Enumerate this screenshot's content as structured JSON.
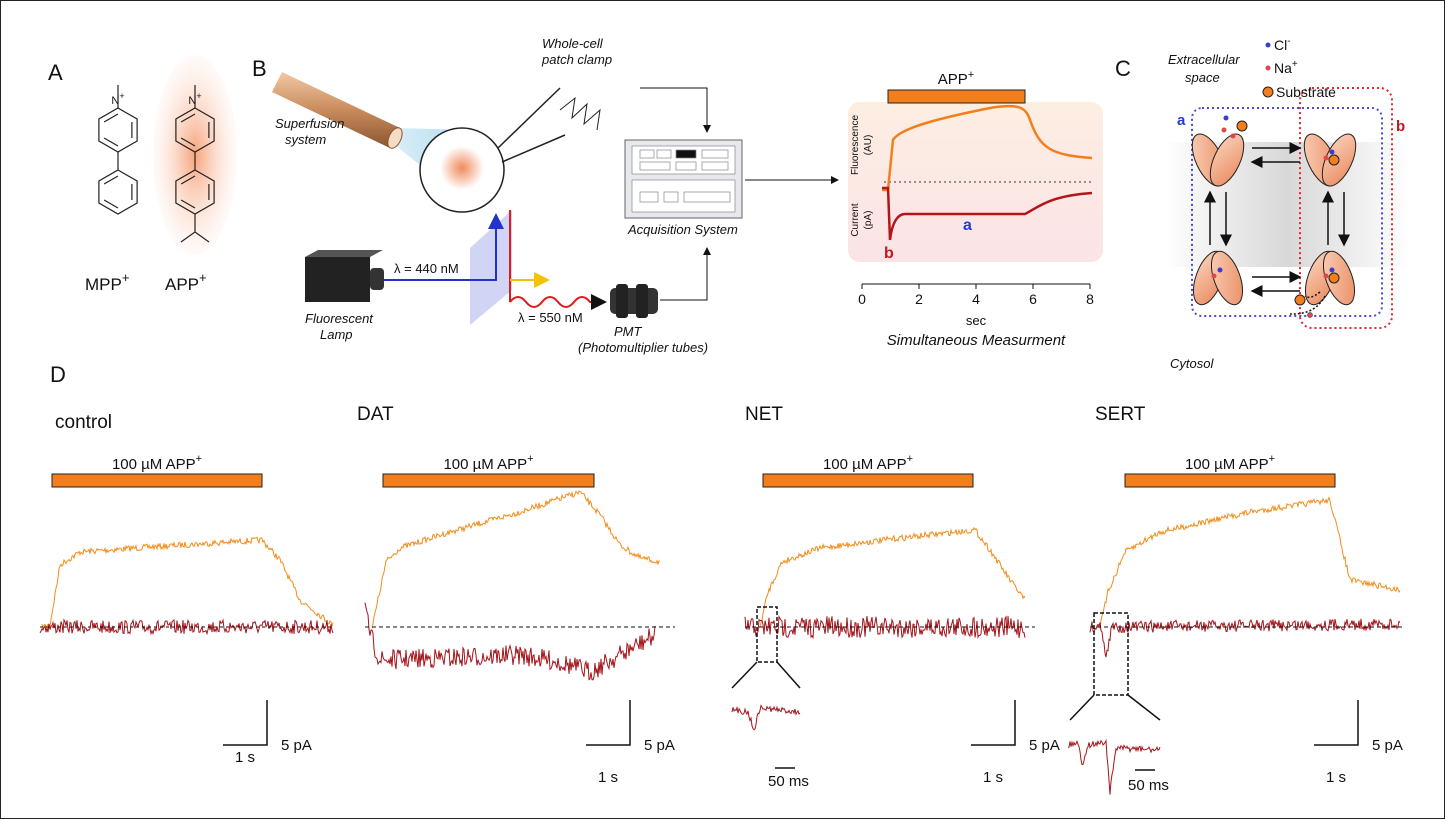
{
  "panel_a": {
    "label": "A",
    "molecules": [
      {
        "name": "MPP",
        "charge": "+",
        "atom": "N",
        "atom_charge": "+"
      },
      {
        "name": "APP",
        "charge": "+",
        "atom": "N",
        "atom_charge": "+"
      }
    ]
  },
  "panel_b": {
    "label": "B",
    "patch_clamp": [
      "Whole-cell",
      "patch clamp"
    ],
    "superfusion": [
      "Superfusion",
      "system"
    ],
    "lamp": [
      "Fluorescent",
      "Lamp"
    ],
    "excitation": "λ = 440 nM",
    "emission": "λ = 550 nM",
    "pmt": "PMT",
    "pmt_full": "(Photomultiplier tubes)",
    "acquisition": "Acquisition System",
    "plot": {
      "bar_label": "APP",
      "bar_charge": "+",
      "fluorescence_label": [
        "Fluorescence",
        "(AU)"
      ],
      "current_label": [
        "Current",
        "(pA)"
      ],
      "phase_a": "a",
      "phase_b": "b",
      "xlim": [
        0,
        8
      ],
      "xticks": [
        0,
        2,
        4,
        6,
        8
      ],
      "xlabel": "sec",
      "caption": "Simultaneous Measurment"
    }
  },
  "panel_c": {
    "label": "C",
    "extracellular": [
      "Extracellular",
      "space"
    ],
    "legend": [
      {
        "name": "Cl",
        "charge": "-"
      },
      {
        "name": "Na",
        "charge": "+"
      },
      {
        "name": "Substrate"
      }
    ],
    "state_a": "a",
    "state_b": "b",
    "cytosol": "Cytosol"
  },
  "panel_d": {
    "label": "D",
    "traces": [
      {
        "name": "control",
        "stimulus": "100 µM APP",
        "stimulus_charge": "+",
        "scale_y": "5 pA",
        "scale_x": "1 s"
      },
      {
        "name": "DAT",
        "stimulus": "100 µM APP",
        "stimulus_charge": "+",
        "scale_y": "5 pA",
        "scale_x": "1 s"
      },
      {
        "name": "NET",
        "stimulus": "100 µM APP",
        "stimulus_charge": "+",
        "scale_y": "5 pA",
        "scale_x": "1 s",
        "inset_scale": "50 ms"
      },
      {
        "name": "SERT",
        "stimulus": "100 µM APP",
        "stimulus_charge": "+",
        "scale_y": "5 pA",
        "scale_x": "1 s",
        "inset_scale": "50 ms"
      }
    ]
  }
}
